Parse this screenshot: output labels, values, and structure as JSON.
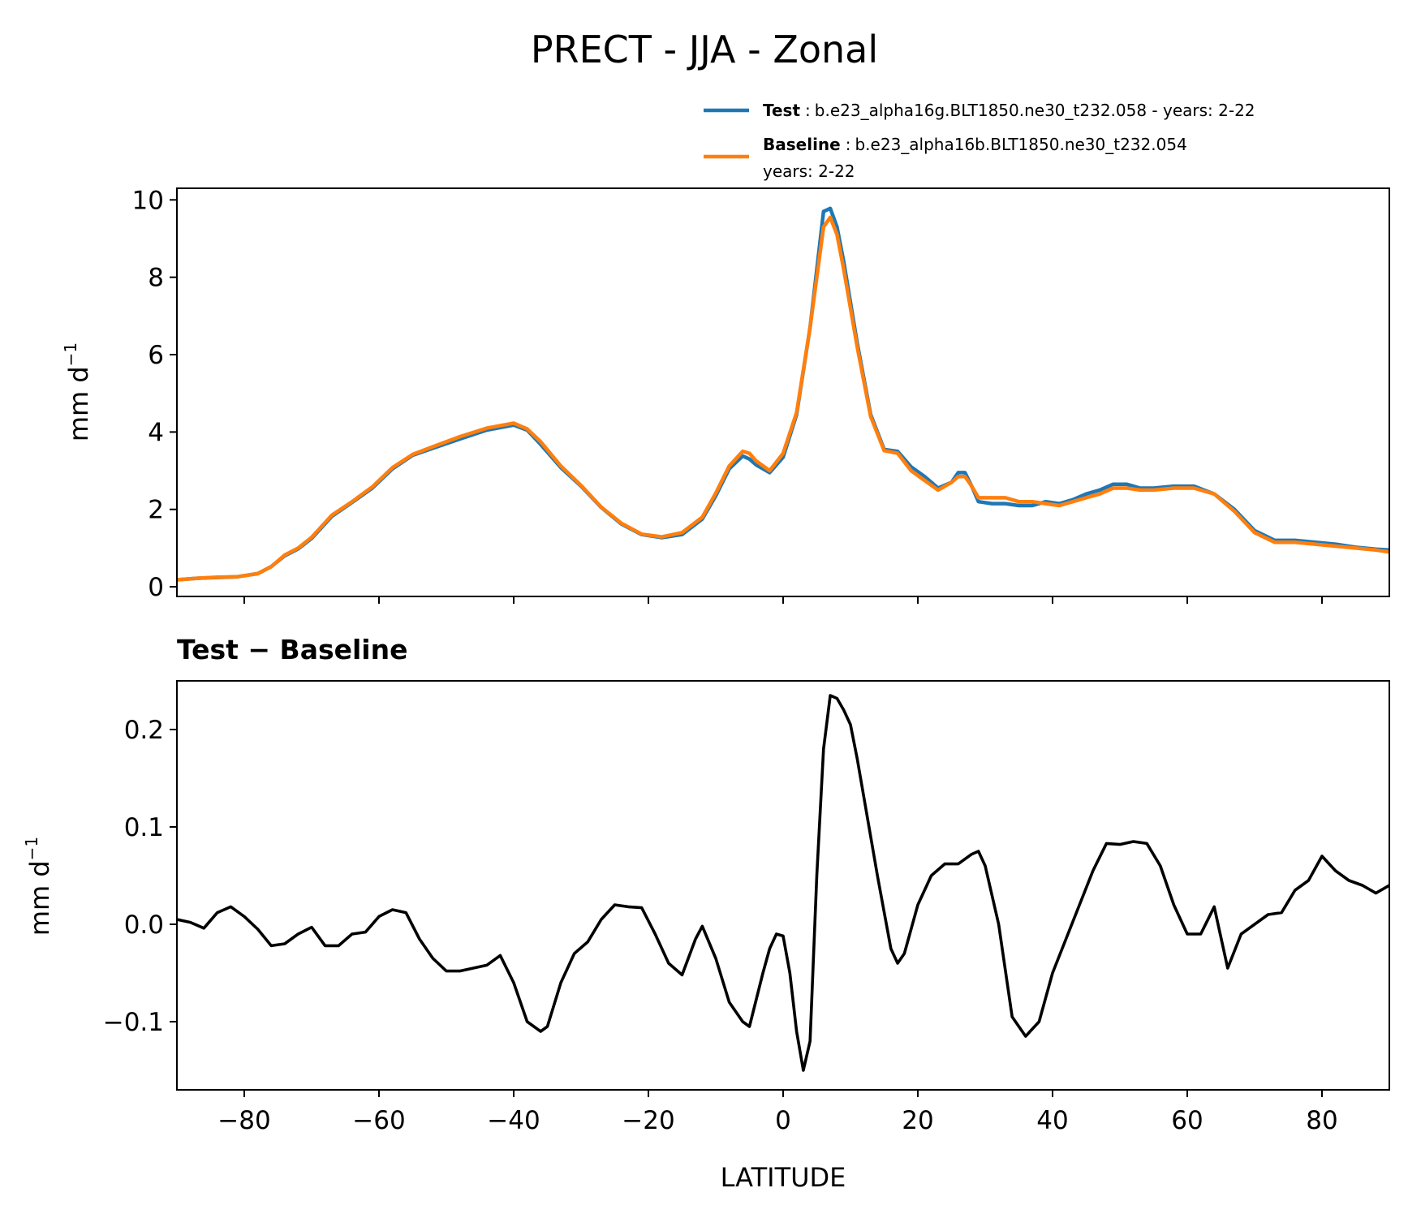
{
  "figure": {
    "title": "PRECT - JJA - Zonal"
  },
  "legend": {
    "entries": [
      {
        "name": "Test",
        "sep": ":",
        "label": "b.e23_alpha16g.BLT1850.ne30_t232.058 - years: 2-22",
        "color": "#1f77b4"
      },
      {
        "name": "Baseline",
        "sep": ":",
        "label": "b.e23_alpha16b.BLT1850.ne30_t232.054",
        "label2": "years: 2-22",
        "color": "#ff7f0e"
      }
    ]
  },
  "chart_data": [
    {
      "type": "line",
      "title": "",
      "xlabel": "",
      "ylabel": "mm d",
      "ylabel_sup": "−1",
      "xlim": [
        -90,
        90
      ],
      "ylim": [
        -0.25,
        10.3
      ],
      "yticks": [
        0,
        2,
        4,
        6,
        8,
        10
      ],
      "ytick_labels": [
        "0",
        "2",
        "4",
        "6",
        "8",
        "10"
      ],
      "xticks": [
        -80,
        -60,
        -40,
        -20,
        0,
        20,
        40,
        60,
        80
      ],
      "series": [
        {
          "name": "Test",
          "color": "#1f77b4",
          "x": [
            -90,
            -87,
            -84,
            -81,
            -78,
            -76,
            -74,
            -72,
            -70,
            -67,
            -64,
            -61,
            -58,
            -55,
            -52,
            -48,
            -44,
            -40,
            -38,
            -36,
            -33,
            -30,
            -27,
            -24,
            -21,
            -18,
            -15,
            -12,
            -10,
            -8,
            -6,
            -5,
            -4,
            -2,
            0,
            2,
            4,
            6,
            7,
            8,
            9,
            11,
            13,
            15,
            17,
            19,
            21,
            23,
            25,
            26,
            27,
            28,
            29,
            31,
            33,
            35,
            37,
            39,
            41,
            43,
            45,
            47,
            49,
            51,
            53,
            55,
            58,
            61,
            64,
            67,
            70,
            73,
            76,
            79,
            82,
            85,
            88,
            90
          ],
          "values": [
            0.18,
            0.22,
            0.24,
            0.26,
            0.34,
            0.52,
            0.8,
            0.98,
            1.25,
            1.82,
            2.18,
            2.55,
            3.05,
            3.4,
            3.58,
            3.82,
            4.05,
            4.18,
            4.05,
            3.68,
            3.08,
            2.6,
            2.05,
            1.62,
            1.35,
            1.27,
            1.35,
            1.75,
            2.35,
            3.05,
            3.38,
            3.3,
            3.15,
            2.95,
            3.35,
            4.45,
            6.7,
            9.7,
            9.78,
            9.3,
            8.4,
            6.3,
            4.45,
            3.55,
            3.5,
            3.1,
            2.85,
            2.55,
            2.7,
            2.95,
            2.95,
            2.6,
            2.2,
            2.15,
            2.15,
            2.1,
            2.1,
            2.2,
            2.15,
            2.25,
            2.4,
            2.5,
            2.65,
            2.65,
            2.55,
            2.55,
            2.6,
            2.6,
            2.4,
            2.0,
            1.45,
            1.2,
            1.2,
            1.15,
            1.1,
            1.02,
            0.97,
            0.95
          ]
        },
        {
          "name": "Baseline",
          "color": "#ff7f0e",
          "x": [
            -90,
            -87,
            -84,
            -81,
            -78,
            -76,
            -74,
            -72,
            -70,
            -67,
            -64,
            -61,
            -58,
            -55,
            -52,
            -48,
            -44,
            -40,
            -38,
            -36,
            -33,
            -30,
            -27,
            -24,
            -21,
            -18,
            -15,
            -12,
            -10,
            -8,
            -6,
            -5,
            -4,
            -2,
            0,
            2,
            4,
            6,
            7,
            8,
            9,
            11,
            13,
            15,
            17,
            19,
            21,
            23,
            25,
            26,
            27,
            28,
            29,
            31,
            33,
            35,
            37,
            39,
            41,
            43,
            45,
            47,
            49,
            51,
            53,
            55,
            58,
            61,
            64,
            67,
            70,
            73,
            76,
            79,
            82,
            85,
            88,
            90
          ],
          "values": [
            0.18,
            0.22,
            0.25,
            0.26,
            0.34,
            0.52,
            0.82,
            1.0,
            1.28,
            1.85,
            2.2,
            2.58,
            3.08,
            3.42,
            3.62,
            3.88,
            4.1,
            4.23,
            4.08,
            3.75,
            3.12,
            2.62,
            2.06,
            1.64,
            1.36,
            1.29,
            1.4,
            1.8,
            2.42,
            3.12,
            3.5,
            3.45,
            3.25,
            3.0,
            3.45,
            4.5,
            6.7,
            9.3,
            9.55,
            9.1,
            8.2,
            6.2,
            4.4,
            3.52,
            3.45,
            3.0,
            2.75,
            2.5,
            2.7,
            2.85,
            2.85,
            2.6,
            2.3,
            2.3,
            2.3,
            2.2,
            2.2,
            2.15,
            2.1,
            2.2,
            2.3,
            2.4,
            2.55,
            2.55,
            2.5,
            2.5,
            2.55,
            2.55,
            2.4,
            1.95,
            1.4,
            1.15,
            1.15,
            1.1,
            1.05,
            1.0,
            0.95,
            0.9
          ]
        }
      ]
    },
    {
      "type": "line",
      "title": "Test − Baseline",
      "xlabel": "LATITUDE",
      "ylabel": "mm d",
      "ylabel_sup": "−1",
      "xlim": [
        -90,
        90
      ],
      "ylim": [
        -0.17,
        0.25
      ],
      "yticks": [
        -0.1,
        0.0,
        0.1,
        0.2
      ],
      "ytick_labels": [
        "−0.1",
        "0.0",
        "0.1",
        "0.2"
      ],
      "xticks": [
        -80,
        -60,
        -40,
        -20,
        0,
        20,
        40,
        60,
        80
      ],
      "xtick_labels": [
        "−80",
        "−60",
        "−40",
        "−20",
        "0",
        "20",
        "40",
        "60",
        "80"
      ],
      "series": [
        {
          "name": "Test − Baseline",
          "color": "#000000",
          "x": [
            -90,
            -88,
            -86,
            -84,
            -82,
            -80,
            -78,
            -76,
            -74,
            -72,
            -70,
            -68,
            -66,
            -64,
            -62,
            -60,
            -58,
            -56,
            -54,
            -52,
            -50,
            -48,
            -46,
            -44,
            -42,
            -40,
            -38,
            -36,
            -35,
            -33,
            -31,
            -29,
            -27,
            -25,
            -23,
            -21,
            -19,
            -17,
            -15,
            -13,
            -12,
            -10,
            -8,
            -6,
            -5,
            -3,
            -2,
            -1,
            0,
            1,
            2,
            3,
            4,
            5,
            6,
            7,
            8,
            9,
            10,
            11,
            12,
            14,
            16,
            17,
            18,
            20,
            22,
            24,
            26,
            28,
            29,
            30,
            32,
            34,
            36,
            38,
            40,
            42,
            44,
            46,
            48,
            50,
            52,
            54,
            56,
            58,
            60,
            62,
            64,
            66,
            68,
            70,
            72,
            74,
            76,
            78,
            80,
            82,
            84,
            86,
            88,
            90
          ],
          "values": [
            0.005,
            0.002,
            -0.004,
            0.012,
            0.018,
            0.008,
            -0.005,
            -0.022,
            -0.02,
            -0.01,
            -0.003,
            -0.022,
            -0.022,
            -0.01,
            -0.008,
            0.008,
            0.015,
            0.012,
            -0.015,
            -0.035,
            -0.048,
            -0.048,
            -0.045,
            -0.042,
            -0.032,
            -0.06,
            -0.1,
            -0.11,
            -0.105,
            -0.06,
            -0.03,
            -0.018,
            0.005,
            0.02,
            0.018,
            0.017,
            -0.01,
            -0.04,
            -0.052,
            -0.015,
            -0.002,
            -0.035,
            -0.08,
            -0.1,
            -0.105,
            -0.05,
            -0.025,
            -0.01,
            -0.012,
            -0.05,
            -0.11,
            -0.15,
            -0.12,
            0.05,
            0.18,
            0.235,
            0.232,
            0.22,
            0.205,
            0.17,
            0.13,
            0.05,
            -0.025,
            -0.04,
            -0.03,
            0.02,
            0.05,
            0.062,
            0.062,
            0.072,
            0.075,
            0.06,
            0.0,
            -0.095,
            -0.115,
            -0.1,
            -0.05,
            -0.015,
            0.02,
            0.055,
            0.083,
            0.082,
            0.085,
            0.083,
            0.06,
            0.02,
            -0.01,
            -0.01,
            0.018,
            -0.045,
            -0.01,
            0.0,
            0.01,
            0.012,
            0.035,
            0.045,
            0.07,
            0.055,
            0.045,
            0.04,
            0.032,
            0.04
          ]
        }
      ]
    }
  ]
}
